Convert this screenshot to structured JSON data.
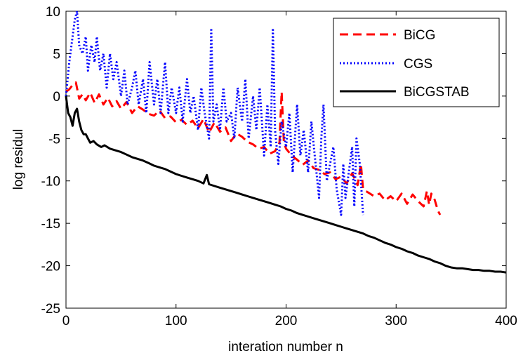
{
  "chart_data": {
    "type": "line",
    "title": "",
    "xlabel": "interation number n",
    "ylabel": "log residul",
    "xlim": [
      0,
      400
    ],
    "ylim": [
      -25,
      10
    ],
    "x_ticks": [
      "0",
      "100",
      "200",
      "300",
      "400"
    ],
    "y_ticks": [
      "-25",
      "-20",
      "-15",
      "-10",
      "-5",
      "0",
      "5",
      "10"
    ],
    "grid": false,
    "legend_position": "top-right",
    "series": [
      {
        "name": "BiCG",
        "color": "#ff0000",
        "style": "dashed",
        "x": [
          0,
          3,
          6,
          9,
          12,
          15,
          18,
          22,
          26,
          30,
          34,
          38,
          42,
          46,
          50,
          55,
          60,
          65,
          70,
          75,
          80,
          85,
          90,
          95,
          100,
          105,
          110,
          115,
          120,
          125,
          130,
          135,
          140,
          145,
          150,
          155,
          160,
          165,
          170,
          175,
          180,
          185,
          190,
          194,
          196,
          198,
          200,
          205,
          210,
          215,
          220,
          225,
          230,
          235,
          240,
          245,
          250,
          255,
          260,
          265,
          268,
          270,
          275,
          280,
          285,
          290,
          295,
          300,
          305,
          310,
          315,
          320,
          325,
          328,
          330,
          332,
          335,
          338,
          340
        ],
        "y": [
          0.5,
          0.8,
          1.3,
          1.6,
          -0.3,
          0.2,
          -0.5,
          0.4,
          -0.8,
          0.2,
          -1.0,
          -0.2,
          -1.2,
          -0.6,
          -1.5,
          -0.7,
          -2.0,
          -1.2,
          -1.6,
          -2.1,
          -2.3,
          -1.7,
          -2.6,
          -2.4,
          -3.1,
          -2.8,
          -3.4,
          -2.9,
          -3.8,
          -2.7,
          -4.3,
          -3.1,
          -4.2,
          -3.7,
          -5.3,
          -4.4,
          -4.8,
          -5.4,
          -5.7,
          -6.2,
          -6.0,
          -6.8,
          -6.5,
          -5.5,
          0.5,
          -5.5,
          -6.2,
          -7.0,
          -7.5,
          -8.1,
          -7.6,
          -8.5,
          -8.7,
          -9.2,
          -9.0,
          -9.8,
          -9.5,
          -10.3,
          -9.1,
          -10.5,
          -8.0,
          -11.0,
          -11.4,
          -11.8,
          -11.5,
          -12.3,
          -11.8,
          -12.4,
          -11.5,
          -12.7,
          -11.6,
          -12.4,
          -13.0,
          -11.2,
          -12.8,
          -11.5,
          -12.2,
          -13.5,
          -14.0
        ]
      },
      {
        "name": "CGS",
        "color": "#0000ff",
        "style": "dotted",
        "x": [
          0,
          3,
          6,
          8,
          10,
          12,
          15,
          18,
          20,
          23,
          26,
          28,
          31,
          34,
          37,
          40,
          43,
          46,
          50,
          53,
          56,
          60,
          63,
          66,
          70,
          73,
          76,
          80,
          83,
          86,
          90,
          93,
          96,
          100,
          103,
          106,
          110,
          113,
          116,
          120,
          123,
          126,
          130,
          132,
          134,
          137,
          140,
          143,
          146,
          150,
          153,
          156,
          160,
          163,
          166,
          170,
          173,
          176,
          180,
          183,
          186,
          188,
          190,
          193,
          196,
          200,
          203,
          206,
          210,
          213,
          216,
          220,
          223,
          226,
          230,
          232,
          234,
          237,
          240,
          243,
          246,
          250,
          252,
          254,
          257,
          260,
          262,
          264,
          267,
          270
        ],
        "y": [
          0,
          4,
          7,
          9,
          10,
          6,
          5,
          7,
          3,
          6,
          4,
          7,
          3,
          5,
          1,
          5,
          2,
          4,
          0,
          3,
          -1,
          1,
          3,
          -1,
          2,
          -2,
          4,
          -1,
          2,
          -2,
          4,
          -2,
          1,
          -2,
          1,
          -3,
          2,
          -2,
          0,
          -4,
          1,
          -2,
          -5,
          8,
          -3,
          -1,
          -4,
          1,
          -3,
          -2,
          -5,
          1,
          -3,
          2,
          -5,
          0,
          -4,
          1,
          -7,
          -1,
          -6,
          8,
          -4,
          -8,
          -3,
          -6,
          -2,
          -9,
          -1,
          -7,
          -4,
          -9,
          -3,
          -7,
          -12,
          -5,
          -1,
          -10,
          -8,
          -6,
          -11,
          -14,
          -8,
          -12,
          -9,
          -6,
          -13,
          -5,
          -8,
          -14
        ]
      },
      {
        "name": "BiCGSTAB",
        "color": "#000000",
        "style": "solid",
        "x": [
          0,
          2,
          4,
          6,
          8,
          10,
          12,
          14,
          16,
          18,
          20,
          22,
          25,
          28,
          32,
          35,
          40,
          45,
          50,
          55,
          60,
          65,
          70,
          75,
          80,
          85,
          90,
          95,
          100,
          105,
          110,
          115,
          120,
          125,
          128,
          130,
          135,
          140,
          145,
          150,
          155,
          160,
          165,
          170,
          175,
          180,
          185,
          190,
          195,
          200,
          205,
          210,
          215,
          220,
          225,
          230,
          235,
          240,
          245,
          250,
          255,
          260,
          265,
          270,
          275,
          280,
          285,
          290,
          295,
          300,
          305,
          310,
          315,
          320,
          325,
          330,
          335,
          340,
          345,
          350,
          355,
          360,
          365,
          370,
          375,
          380,
          385,
          390,
          395,
          400
        ],
        "y": [
          0,
          -2.0,
          -2.5,
          -3.5,
          -2.0,
          -1.5,
          -3.0,
          -4.0,
          -4.5,
          -4.5,
          -5.0,
          -5.5,
          -5.3,
          -5.7,
          -6.0,
          -5.8,
          -6.2,
          -6.4,
          -6.6,
          -6.9,
          -7.2,
          -7.4,
          -7.6,
          -7.9,
          -8.2,
          -8.4,
          -8.6,
          -8.9,
          -9.2,
          -9.4,
          -9.6,
          -9.8,
          -10.0,
          -10.3,
          -9.3,
          -10.4,
          -10.6,
          -10.8,
          -11.0,
          -11.2,
          -11.4,
          -11.6,
          -11.8,
          -12.0,
          -12.2,
          -12.4,
          -12.6,
          -12.8,
          -13.0,
          -13.3,
          -13.5,
          -13.8,
          -14.0,
          -14.2,
          -14.4,
          -14.6,
          -14.8,
          -15.0,
          -15.2,
          -15.4,
          -15.6,
          -15.8,
          -16.0,
          -16.2,
          -16.5,
          -16.7,
          -17.0,
          -17.3,
          -17.5,
          -17.8,
          -18.0,
          -18.3,
          -18.5,
          -18.8,
          -19.0,
          -19.2,
          -19.5,
          -19.7,
          -20.0,
          -20.2,
          -20.3,
          -20.3,
          -20.4,
          -20.5,
          -20.5,
          -20.6,
          -20.6,
          -20.7,
          -20.7,
          -20.8
        ]
      }
    ]
  }
}
